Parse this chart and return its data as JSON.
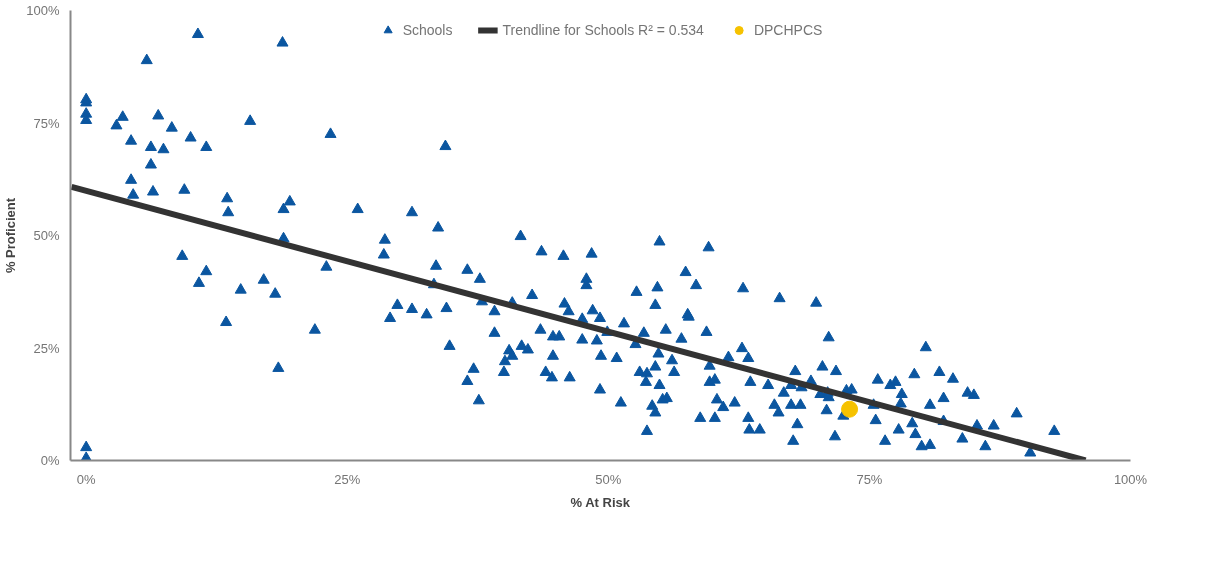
{
  "chart_data": {
    "type": "scatter",
    "xlabel": "% At Risk",
    "ylabel": "% Proficient",
    "xlim": [
      -1.5,
      100
    ],
    "ylim": [
      0,
      100
    ],
    "xticks": [
      {
        "value": 0,
        "label": "0%"
      },
      {
        "value": 25,
        "label": "25%"
      },
      {
        "value": 50,
        "label": "50%"
      },
      {
        "value": 75,
        "label": "75%"
      },
      {
        "value": 100,
        "label": "100%"
      }
    ],
    "yticks": [
      {
        "value": 0,
        "label": "0%"
      },
      {
        "value": 25,
        "label": "25%"
      },
      {
        "value": 50,
        "label": "50%"
      },
      {
        "value": 75,
        "label": "75%"
      },
      {
        "value": 100,
        "label": "100%"
      }
    ],
    "grid": false,
    "legend": "top",
    "series": [
      {
        "name": "Schools",
        "marker": "triangle",
        "color": "#0b56a0",
        "x": [
          0,
          0,
          0,
          0,
          0,
          0,
          5.8,
          10.7,
          18.8,
          2.9,
          3.5,
          4.3,
          6.9,
          6.2,
          7.4,
          8.2,
          10,
          11.5,
          15.7,
          23.4,
          34.4,
          6.2,
          4.3,
          4.5,
          6.4,
          9.4,
          13.5,
          13.6,
          19.5,
          18.9,
          26,
          31.2,
          33.7,
          18.9,
          9.2,
          11.5,
          10.8,
          14.8,
          13.4,
          17,
          18.1,
          18.4,
          21.9,
          23,
          28.5,
          28.6,
          29.1,
          29.8,
          31.2,
          32.6,
          33.3,
          33.5,
          34.5,
          34.8,
          41.6,
          43.6,
          45.7,
          48.4,
          54.9,
          59.6,
          36.5,
          37.7,
          47.9,
          47.9,
          57.4,
          58.4,
          54.7,
          52.7,
          54.5,
          62.9,
          66.4,
          42.7,
          37.9,
          40.8,
          39.1,
          45.8,
          46.2,
          48.5,
          49.2,
          47.5,
          57.6,
          57.7,
          51.5,
          49.9,
          55.5,
          53.4,
          59.4,
          57,
          52.6,
          43.5,
          44.7,
          45.3,
          47.5,
          48.9,
          39.1,
          40.5,
          40.8,
          40.1,
          40,
          41.7,
          42.3,
          44.7,
          49.3,
          50.8,
          54.8,
          56.1,
          61.5,
          62.8,
          63.4,
          37.1,
          36.5,
          37.6,
          44,
          44.6,
          46.3,
          49.2,
          51.2,
          53,
          53.7,
          54.5,
          56.3,
          53.6,
          54.9,
          59.7,
          59.7,
          60.2,
          55.2,
          55.6,
          54.2,
          54.5,
          53.7,
          58.8,
          60.2,
          60.4,
          61,
          62.1,
          63.6,
          65.3,
          63.4,
          63.5,
          64.5,
          65.9,
          66.3,
          66.8,
          69.9,
          71.1,
          80.4,
          67.9,
          70.5,
          71.8,
          67.5,
          68.5,
          69.4,
          70.3,
          71,
          71.1,
          72.8,
          73.3,
          75.8,
          77,
          77.5,
          78.1,
          79.3,
          81.7,
          83,
          84.4,
          85,
          67.5,
          68.4,
          70.9,
          72.5,
          75.4,
          78,
          80.8,
          82.1,
          75.6,
          79.1,
          82.1,
          85.3,
          86.9,
          89.1,
          92.7,
          68.1,
          67.7,
          71.7,
          76.5,
          77.8,
          79.4,
          80,
          80.8,
          83.9,
          86.1,
          90.4
        ],
        "values": [
          80.2,
          79.5,
          77,
          75.6,
          2.9,
          0.5,
          88.9,
          94.7,
          92.8,
          74.4,
          76.3,
          71,
          76.6,
          69.6,
          69.1,
          73.9,
          71.7,
          69.6,
          75.4,
          72.5,
          69.8,
          65.7,
          62.3,
          59,
          59.7,
          60.1,
          58.2,
          55.1,
          57.5,
          55.8,
          55.8,
          55.1,
          51.7,
          49.3,
          45.4,
          42,
          39.4,
          37.9,
          30.7,
          40.1,
          37,
          20.5,
          29,
          43,
          45.7,
          49,
          31.6,
          34.5,
          33.6,
          32.4,
          39.1,
          43.2,
          33.8,
          25.4,
          49.8,
          46.4,
          45.4,
          45.9,
          48.6,
          47.3,
          42.3,
          40.3,
          40.3,
          38.9,
          41.8,
          38.9,
          38.4,
          37.4,
          34.5,
          38.2,
          36,
          36.7,
          35.3,
          35,
          33.1,
          34.8,
          33.1,
          33.3,
          31.6,
          31.4,
          32.4,
          31.9,
          30.4,
          28.5,
          29,
          28.3,
          28.5,
          27,
          25.8,
          29,
          27.5,
          27.5,
          26.8,
          26.6,
          28.3,
          24.4,
          23.2,
          22,
          19.6,
          25.4,
          24.6,
          23.2,
          23.2,
          22.7,
          23.7,
          22.2,
          22.9,
          24.9,
          22.7,
          20.3,
          17.6,
          13.3,
          19.6,
          18.4,
          18.4,
          15.7,
          12.8,
          19.6,
          19.3,
          20.8,
          19.6,
          17.4,
          16.7,
          21,
          17.4,
          17.9,
          13.5,
          13.8,
          12.1,
          10.6,
          6.5,
          9.4,
          9.4,
          13.5,
          11.8,
          12.8,
          17.4,
          16.7,
          9.4,
          6.8,
          6.8,
          12.3,
          10.6,
          15,
          35,
          27.3,
          25.1,
          19.8,
          20.8,
          19.8,
          16.7,
          16.2,
          17.6,
          14.7,
          15,
          14,
          15.5,
          15.7,
          17.9,
          16.7,
          17.4,
          14.7,
          19.1,
          19.6,
          18.1,
          15,
          14.5,
          12.3,
          12.3,
          11.1,
          9.9,
          12.3,
          12.6,
          12.3,
          13.8,
          8.9,
          8.2,
          8.7,
          7.7,
          7.7,
          10.4,
          6.5,
          8,
          4.3,
          5.3,
          4.3,
          6.8,
          5.8,
          3.1,
          3.4,
          4.8,
          3.1,
          1.7
        ]
      },
      {
        "name": "Trendline for Schools R² = 0.534",
        "type": "line",
        "color": "#333333",
        "line_style": "solid",
        "x": [
          -1.4,
          95.7
        ],
        "values": [
          60.8,
          0
        ]
      },
      {
        "name": "DPCHPCS",
        "marker": "circle",
        "color": "#f6c200",
        "x": [
          73.1
        ],
        "values": [
          11.4
        ]
      }
    ]
  }
}
